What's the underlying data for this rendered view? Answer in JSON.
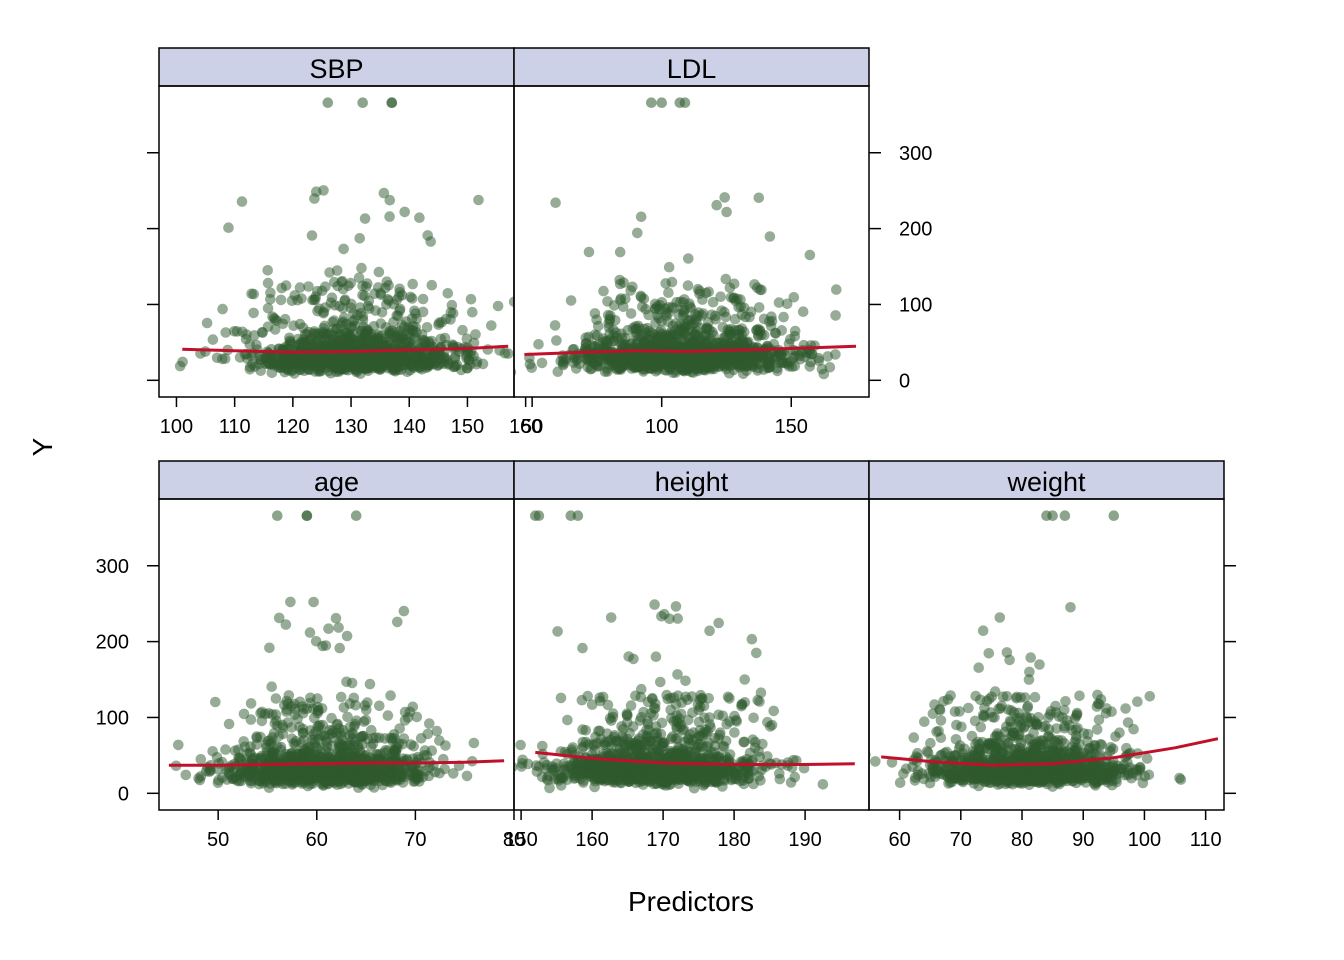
{
  "colors": {
    "point": "#2e5a2e",
    "smooth": "#c0102a",
    "strip": "#ccd1e8",
    "frame": "#000000"
  },
  "chart_data": {
    "type": "scatter",
    "layout": "lattice 3x2 panels, shared y axis",
    "xlabel": "Predictors",
    "ylabel": "Y",
    "ylim": [
      -22,
      388
    ],
    "y_ticks": [
      0,
      100,
      200,
      300
    ],
    "y_tick_labels": [
      "0",
      "100",
      "200",
      "300"
    ],
    "n_points_per_panel": 1200,
    "panels": [
      {
        "name": "SBP",
        "xlim": [
          97,
          158
        ],
        "x_ticks": [
          100,
          110,
          120,
          130,
          140,
          150,
          160
        ],
        "x_tick_labels": [
          "100",
          "110",
          "120",
          "130",
          "140",
          "150",
          "160"
        ],
        "x_center": 131,
        "x_sd": 9,
        "outliers": [
          {
            "x": 126,
            "y": 366
          },
          {
            "x": 132,
            "y": 366
          },
          {
            "x": 137,
            "y": 366
          },
          {
            "x": 137,
            "y": 366
          }
        ],
        "smooth": {
          "x": [
            101,
            110,
            120,
            130,
            140,
            150,
            157
          ],
          "y": [
            41,
            39,
            37,
            38,
            40,
            42,
            45
          ]
        }
      },
      {
        "name": "LDL",
        "xlim": [
          43,
          180
        ],
        "x_ticks": [
          50,
          100,
          150
        ],
        "x_tick_labels": [
          "50",
          "100",
          "150"
        ],
        "x_center": 108,
        "x_sd": 22,
        "outliers": [
          {
            "x": 96,
            "y": 366
          },
          {
            "x": 100,
            "y": 366
          },
          {
            "x": 107,
            "y": 366
          },
          {
            "x": 109,
            "y": 366
          }
        ],
        "smooth": {
          "x": [
            47,
            70,
            90,
            110,
            130,
            150,
            175
          ],
          "y": [
            34,
            37,
            39,
            38,
            40,
            42,
            45
          ]
        }
      },
      {
        "name": "age",
        "xlim": [
          44,
          80
        ],
        "x_ticks": [
          50,
          60,
          70,
          80
        ],
        "x_tick_labels": [
          "50",
          "60",
          "70",
          "80"
        ],
        "x_center": 61,
        "x_sd": 5,
        "outliers": [
          {
            "x": 56,
            "y": 366
          },
          {
            "x": 59,
            "y": 366
          },
          {
            "x": 59,
            "y": 366
          },
          {
            "x": 64,
            "y": 366
          }
        ],
        "smooth": {
          "x": [
            45,
            50,
            55,
            60,
            65,
            70,
            75,
            79
          ],
          "y": [
            37,
            37,
            38,
            39,
            40,
            40,
            41,
            43
          ]
        }
      },
      {
        "name": "height",
        "xlim": [
          149,
          199
        ],
        "x_ticks": [
          150,
          160,
          170,
          180,
          190
        ],
        "x_tick_labels": [
          "150",
          "160",
          "170",
          "180",
          "190"
        ],
        "x_center": 169,
        "x_sd": 7,
        "outliers": [
          {
            "x": 152,
            "y": 366
          },
          {
            "x": 152.5,
            "y": 366
          },
          {
            "x": 157,
            "y": 366
          },
          {
            "x": 158,
            "y": 366
          }
        ],
        "smooth": {
          "x": [
            152,
            160,
            170,
            180,
            190,
            197
          ],
          "y": [
            54,
            46,
            40,
            38,
            38,
            39
          ]
        }
      },
      {
        "name": "weight",
        "xlim": [
          55,
          113
        ],
        "x_ticks": [
          60,
          70,
          80,
          90,
          100,
          110
        ],
        "x_tick_labels": [
          "60",
          "70",
          "80",
          "90",
          "100",
          "110"
        ],
        "x_center": 81,
        "x_sd": 8,
        "outliers": [
          {
            "x": 84,
            "y": 366
          },
          {
            "x": 85,
            "y": 366
          },
          {
            "x": 87,
            "y": 366
          },
          {
            "x": 95,
            "y": 366
          }
        ],
        "smooth": {
          "x": [
            57,
            65,
            75,
            85,
            95,
            105,
            112
          ],
          "y": [
            48,
            42,
            37,
            39,
            47,
            60,
            72
          ]
        }
      }
    ]
  }
}
